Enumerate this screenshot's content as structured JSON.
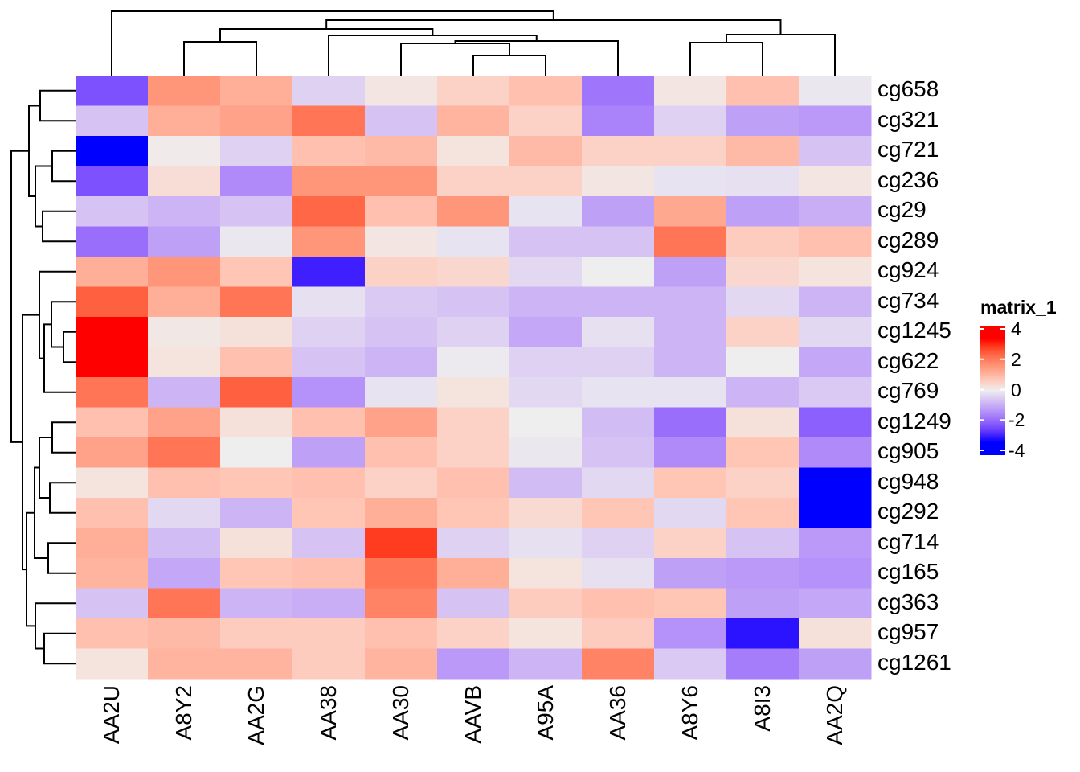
{
  "chart_data": {
    "type": "heatmap",
    "rows": [
      "cg658",
      "cg321",
      "cg721",
      "cg236",
      "cg29",
      "cg289",
      "cg924",
      "cg734",
      "cg1245",
      "cg622",
      "cg769",
      "cg1249",
      "cg905",
      "cg948",
      "cg292",
      "cg714",
      "cg165",
      "cg363",
      "cg957",
      "cg1261"
    ],
    "columns": [
      "AA2U",
      "A8Y2",
      "AA2G",
      "AA38",
      "AA30",
      "AAVB",
      "A95A",
      "AA36",
      "A8Y6",
      "A8I3",
      "AA2Q"
    ],
    "values": [
      [
        -2.2,
        1.5,
        1.1,
        -0.4,
        0.15,
        0.5,
        0.8,
        -1.7,
        0.15,
        0.8,
        -0.1
      ],
      [
        -0.6,
        1.1,
        1.3,
        2.0,
        -0.6,
        1.0,
        0.5,
        -1.5,
        -0.4,
        -1.1,
        -1.2
      ],
      [
        -3.5,
        0.05,
        -0.4,
        0.8,
        0.9,
        0.2,
        0.9,
        0.5,
        0.5,
        0.9,
        -0.6
      ],
      [
        -2.2,
        0.3,
        -1.4,
        1.5,
        1.5,
        0.5,
        0.5,
        0.15,
        -0.15,
        -0.2,
        0.15
      ],
      [
        -0.6,
        -0.8,
        -0.6,
        2.2,
        0.8,
        1.5,
        -0.15,
        -1.1,
        1.2,
        -1.1,
        -0.9
      ],
      [
        -1.8,
        -1.1,
        -0.1,
        1.5,
        0.15,
        -0.15,
        -0.6,
        -0.6,
        2.0,
        0.6,
        0.8
      ],
      [
        1.1,
        1.5,
        0.7,
        -2.8,
        0.5,
        0.4,
        -0.3,
        0.0,
        -1.1,
        0.4,
        0.2
      ],
      [
        2.3,
        1.1,
        2.0,
        -0.2,
        -0.5,
        -0.6,
        -0.8,
        -0.8,
        -0.8,
        -0.3,
        -0.8
      ],
      [
        3.5,
        0.1,
        0.25,
        -0.4,
        -0.6,
        -0.4,
        -1.0,
        -0.2,
        -0.8,
        0.5,
        -0.3
      ],
      [
        3.5,
        0.2,
        0.8,
        -0.6,
        -0.8,
        -0.05,
        -0.4,
        -0.4,
        -0.8,
        0.0,
        -1.0
      ],
      [
        2.0,
        -0.8,
        2.3,
        -1.3,
        -0.15,
        0.2,
        -0.3,
        -0.15,
        -0.15,
        -0.8,
        -0.5
      ],
      [
        0.8,
        1.3,
        0.25,
        0.8,
        1.3,
        0.5,
        0.0,
        -0.7,
        -1.8,
        0.25,
        -2.0
      ],
      [
        1.3,
        2.0,
        0.0,
        -1.1,
        0.8,
        0.5,
        -0.1,
        -0.6,
        -1.4,
        0.7,
        -1.4
      ],
      [
        0.2,
        0.8,
        0.7,
        0.8,
        0.5,
        0.8,
        -0.7,
        -0.3,
        0.7,
        0.5,
        -3.5
      ],
      [
        0.8,
        -0.3,
        -0.8,
        0.7,
        1.1,
        0.7,
        0.35,
        0.7,
        -0.3,
        0.7,
        -3.1
      ],
      [
        1.1,
        -0.7,
        0.25,
        -0.6,
        2.7,
        -0.4,
        -0.2,
        -0.4,
        0.5,
        -0.6,
        -1.2
      ],
      [
        1.0,
        -1.0,
        0.7,
        0.8,
        2.0,
        1.1,
        0.2,
        -0.2,
        -1.1,
        -1.2,
        -1.3
      ],
      [
        -0.6,
        2.0,
        -0.8,
        -0.9,
        1.8,
        -0.6,
        0.6,
        0.8,
        0.7,
        -1.1,
        -1.0
      ],
      [
        0.8,
        0.9,
        0.6,
        0.6,
        0.8,
        0.5,
        0.2,
        0.6,
        -1.3,
        -2.9,
        0.25
      ],
      [
        0.2,
        1.0,
        1.0,
        0.6,
        1.0,
        -1.2,
        -0.8,
        1.8,
        -0.5,
        -1.6,
        -1.1
      ]
    ],
    "legend": {
      "title": "matrix_1",
      "ticks": [
        "4",
        "2",
        "0",
        "-2",
        "-4"
      ],
      "placement": "right"
    },
    "color_scale": {
      "low": "#0000FF",
      "mid": "#EEEEEE",
      "high": "#FF0000"
    },
    "row_dendrogram": true,
    "column_dendrogram": true
  }
}
